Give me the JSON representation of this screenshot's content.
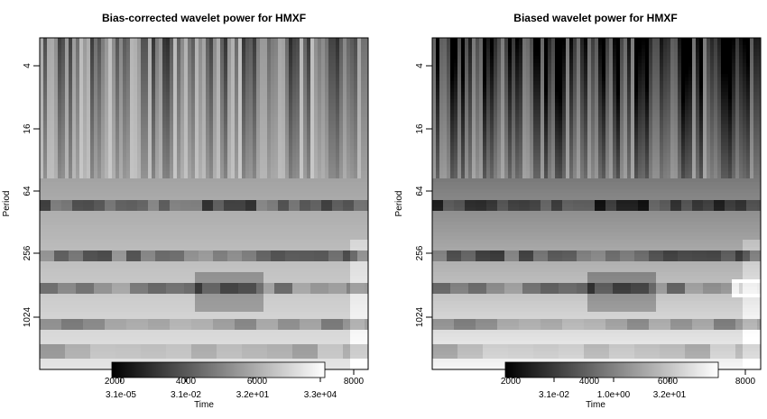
{
  "chart_data": [
    {
      "type": "heatmap",
      "title": "Bias-corrected wavelet power for HMXF",
      "xlabel": "Time",
      "ylabel": "Period",
      "xlim": [
        1,
        8600
      ],
      "x_ticks": [
        "2000",
        "4000",
        "6000",
        "8000"
      ],
      "y_scale": "log2",
      "ylim": [
        1.5,
        4096
      ],
      "y_ticks": [
        "4",
        "16",
        "64",
        "256",
        "1024"
      ],
      "colorscale": "grayscale-black-low",
      "colorbar_ticks": [
        "3.1e-05",
        "3.1e-02",
        "3.2e+01",
        "3.3e+04"
      ],
      "colorbar_placement": "bottom"
    },
    {
      "type": "heatmap",
      "title": "Biased wavelet power for HMXF",
      "xlabel": "Time",
      "ylabel": "Period",
      "xlim": [
        1,
        8600
      ],
      "x_ticks": [
        "2000",
        "4000",
        "6000",
        "8000"
      ],
      "y_scale": "log2",
      "ylim": [
        1.5,
        4096
      ],
      "y_ticks": [
        "4",
        "16",
        "64",
        "256",
        "1024"
      ],
      "colorscale": "grayscale-black-low",
      "colorbar_ticks": [
        "3.1e-02",
        "1.0e+00",
        "3.2e+01"
      ],
      "colorbar_placement": "bottom"
    }
  ]
}
